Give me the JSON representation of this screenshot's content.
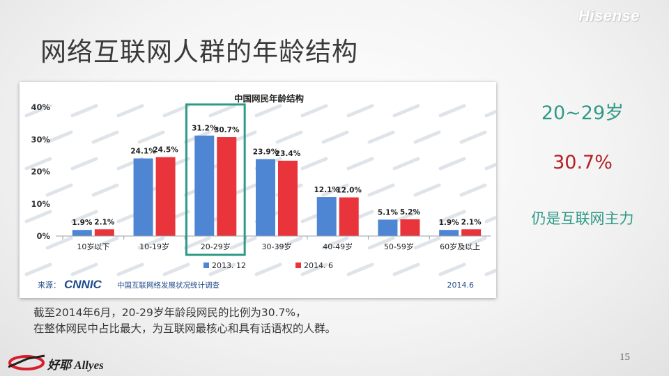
{
  "slide": {
    "brand": "Hisense",
    "title": "网络互联网人群的年龄结构",
    "side_notes": {
      "age_group": "20~29岁",
      "percentage": "30.7%",
      "tagline": "仍是互联网主力"
    },
    "caption_lines": [
      "截至2014年6月，20-29岁年龄段网民的比例为30.7%，",
      "在整体网民中占比最大，为互联网最核心和具有话语权的人群。"
    ],
    "page_number": "15",
    "footer_logo_text": "好耶 Allyes"
  },
  "chart_source": {
    "label": "来源：",
    "org_logo": "CNNIC",
    "org_name": "中国互联网络发展状况统计调查",
    "date": "2014.6"
  },
  "chart_data": {
    "type": "bar",
    "title": "中国网民年龄结构",
    "categories": [
      "10岁以下",
      "10-19岁",
      "20-29岁",
      "30-39岁",
      "40-49岁",
      "50-59岁",
      "60岁及以上"
    ],
    "series": [
      {
        "name": "2013. 12",
        "values": [
          1.9,
          24.1,
          31.2,
          23.9,
          12.1,
          5.1,
          1.9
        ],
        "labels": [
          "1.9%",
          "24.1%",
          "31.2%",
          "23.9%",
          "12.1%",
          "5.1%",
          "1.9%"
        ],
        "color": "#4f86d4"
      },
      {
        "name": "2014. 6",
        "values": [
          2.1,
          24.5,
          30.7,
          23.4,
          12.0,
          5.2,
          2.1
        ],
        "labels": [
          "2.1%",
          "24.5%",
          "30.7%",
          "23.4%",
          "12.0%",
          "5.2%",
          "2.1%"
        ],
        "color": "#e8343a"
      }
    ],
    "ylim": [
      0,
      40
    ],
    "yticks": [
      0,
      10,
      20,
      30,
      40
    ],
    "ytick_labels": [
      "0%",
      "10%",
      "20%",
      "30%",
      "40%"
    ],
    "legend_position": "bottom-center",
    "highlight_category": "20-29岁",
    "highlight_color": "#2e9a86",
    "grid": false
  },
  "colors": {
    "accent_teal": "#2e9a86",
    "accent_red": "#b32126"
  }
}
